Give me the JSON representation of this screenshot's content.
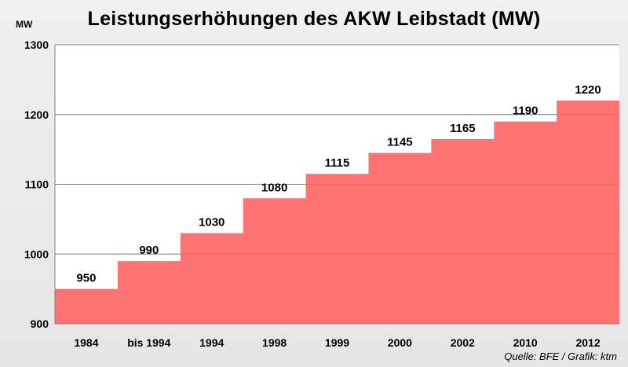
{
  "chart_data": {
    "type": "area",
    "step": true,
    "title": "Leistungserhöhungen des AKW Leibstadt (MW)",
    "ylabel": "MW",
    "xlabel": "",
    "categories": [
      "1984",
      "bis 1994",
      "1994",
      "1998",
      "1999",
      "2000",
      "2002",
      "2010",
      "2012"
    ],
    "values": [
      950,
      990,
      1030,
      1080,
      1115,
      1145,
      1165,
      1190,
      1220
    ],
    "data_labels": [
      "950",
      "990",
      "1030",
      "1080",
      "1115",
      "1145",
      "1165",
      "1190",
      "1220"
    ],
    "ylim": [
      900,
      1300
    ],
    "yticks": [
      900,
      1000,
      1100,
      1200,
      1300
    ],
    "ytick_labels": [
      "900",
      "1000",
      "1100",
      "1200",
      "1300"
    ],
    "grid": true,
    "fill_color": "#ff7373"
  },
  "footer": {
    "source": "Quelle: BFE / Grafik: ktm"
  }
}
